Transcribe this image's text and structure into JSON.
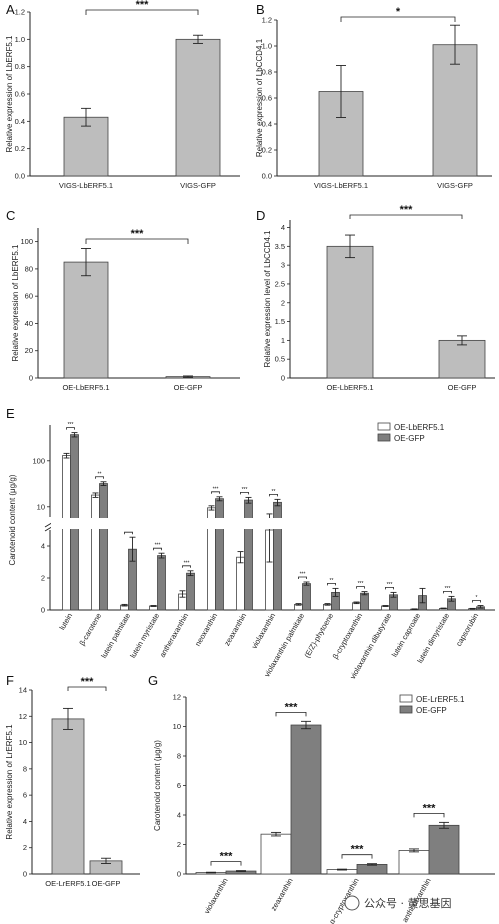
{
  "watermark": {
    "text": "公众号 · 黄思基因",
    "icon": "wechat-icon"
  },
  "chart_data": [
    {
      "panel": "A",
      "type": "bar",
      "categories": [
        "VIGS-LbERF5.1",
        "VIGS-GFP"
      ],
      "series": [
        {
          "values": [
            0.43,
            1.0
          ],
          "errors": [
            0.065,
            0.03
          ],
          "color": "#bdbdbd"
        }
      ],
      "ylabel": "Relative expression of LbERF5.1",
      "ylim": [
        0,
        1.2
      ],
      "yticks": [
        "0.0",
        "0.2",
        "0.4",
        "0.6",
        "0.8",
        "1.0",
        "1.2"
      ],
      "significance": "***"
    },
    {
      "panel": "B",
      "type": "bar",
      "categories": [
        "VIGS-LbERF5.1",
        "VIGS-GFP"
      ],
      "series": [
        {
          "values": [
            0.65,
            1.01
          ],
          "errors": [
            0.2,
            0.15
          ],
          "color": "#bdbdbd"
        }
      ],
      "ylabel": "Relative expression of LbCCD4.1",
      "ylim": [
        0,
        1.2
      ],
      "yticks": [
        "0.0",
        "0.2",
        "0.4",
        "0.6",
        "0.8",
        "1.0",
        "1.2"
      ],
      "significance": "*"
    },
    {
      "panel": "C",
      "type": "bar",
      "categories": [
        "OE-LbERF5.1",
        "OE-GFP"
      ],
      "series": [
        {
          "values": [
            85,
            1
          ],
          "errors": [
            10,
            0.5
          ],
          "color": "#bdbdbd"
        }
      ],
      "ylabel": "Relative expression of LbERF5.1",
      "ylim": [
        0,
        110
      ],
      "yticks": [
        "0",
        "20",
        "40",
        "60",
        "80",
        "100"
      ],
      "significance": "***"
    },
    {
      "panel": "D",
      "type": "bar",
      "categories": [
        "OE-LbERF5.1",
        "OE-GFP"
      ],
      "series": [
        {
          "values": [
            3.5,
            1.0
          ],
          "errors": [
            0.3,
            0.12
          ],
          "color": "#bdbdbd"
        }
      ],
      "ylabel": "Relative expression level of LbCCD4.1",
      "ylim": [
        0,
        4.2
      ],
      "yticks": [
        "0",
        "0.5",
        "1",
        "1.5",
        "2",
        "2.5",
        "3",
        "3.5",
        "4"
      ],
      "significance": "***"
    },
    {
      "panel": "E",
      "type": "bar",
      "broken_axis": true,
      "categories": [
        "lutein",
        "β-carotene",
        "lutein palmitate",
        "lutein myristate",
        "antheraxanthin",
        "neoxanthin",
        "zeaxanthin",
        "violaxanthin",
        "violaxanthin palmitate",
        "(E/Z)-phytoene",
        "β-cryptoxanthin",
        "violaxanthin dibutyrate",
        "lutein caproate",
        "lutein dimyristate",
        "capsorubin"
      ],
      "series": [
        {
          "name": "OE-LbERF5.1",
          "color": "#ffffff",
          "values": [
            130,
            18,
            0.3,
            0.25,
            1.0,
            9.5,
            3.3,
            5.0,
            0.35,
            0.35,
            0.45,
            0.25,
            0.05,
            0.1,
            0.08
          ],
          "errors": [
            15,
            2,
            0.05,
            0.03,
            0.2,
            1,
            0.35,
            2,
            0.05,
            0.05,
            0.05,
            0.03,
            0.02,
            0.02,
            0.02
          ]
        },
        {
          "name": "OE-GFP",
          "color": "#7f7f7f",
          "values": [
            370,
            32,
            3.8,
            3.4,
            2.3,
            15,
            14,
            12.5,
            1.65,
            1.1,
            1.05,
            0.95,
            0.9,
            0.7,
            0.2
          ],
          "errors": [
            40,
            3,
            0.75,
            0.15,
            0.15,
            1.5,
            2,
            2,
            0.1,
            0.25,
            0.1,
            0.15,
            0.45,
            0.15,
            0.08
          ]
        }
      ],
      "significance": [
        "***",
        "**",
        "**",
        "***",
        "***",
        "***",
        "***",
        "**",
        "***",
        "**",
        "***",
        "***",
        "",
        "***",
        "*"
      ],
      "ylabel": "Carotenoid content (μg/g)",
      "yticks_lower": [
        "0",
        "2",
        "4"
      ],
      "yticks_upper": [
        "10",
        "100"
      ],
      "legend": "top-right"
    },
    {
      "panel": "F",
      "type": "bar",
      "categories": [
        "OE-LrERF5.1",
        "OE-GFP"
      ],
      "series": [
        {
          "values": [
            11.8,
            1.0
          ],
          "errors": [
            0.8,
            0.2
          ],
          "color": "#bdbdbd"
        }
      ],
      "ylabel": "Relative expression of LrERF5.1",
      "ylim": [
        0,
        14
      ],
      "yticks": [
        "0",
        "2",
        "4",
        "6",
        "8",
        "10",
        "12",
        "14"
      ],
      "significance": "***"
    },
    {
      "panel": "G",
      "type": "bar",
      "categories": [
        "violaxanthin",
        "zeaxanthin",
        "α-cryptoxanthin",
        "antheraxanthin"
      ],
      "series": [
        {
          "name": "OE-LrERF5.1",
          "color": "#ffffff",
          "values": [
            0.1,
            2.7,
            0.3,
            1.6
          ],
          "errors": [
            0.02,
            0.12,
            0.03,
            0.1
          ]
        },
        {
          "name": "OE-GFP",
          "color": "#7f7f7f",
          "values": [
            0.2,
            10.1,
            0.65,
            3.3
          ],
          "errors": [
            0.03,
            0.25,
            0.05,
            0.2
          ]
        }
      ],
      "ylabel": "Carotenoid content (μg/g)",
      "ylim": [
        0,
        12
      ],
      "yticks": [
        "0",
        "2",
        "4",
        "6",
        "8",
        "10",
        "12"
      ],
      "significance": [
        "***",
        "***",
        "***",
        "***"
      ],
      "legend": "top-left"
    }
  ]
}
